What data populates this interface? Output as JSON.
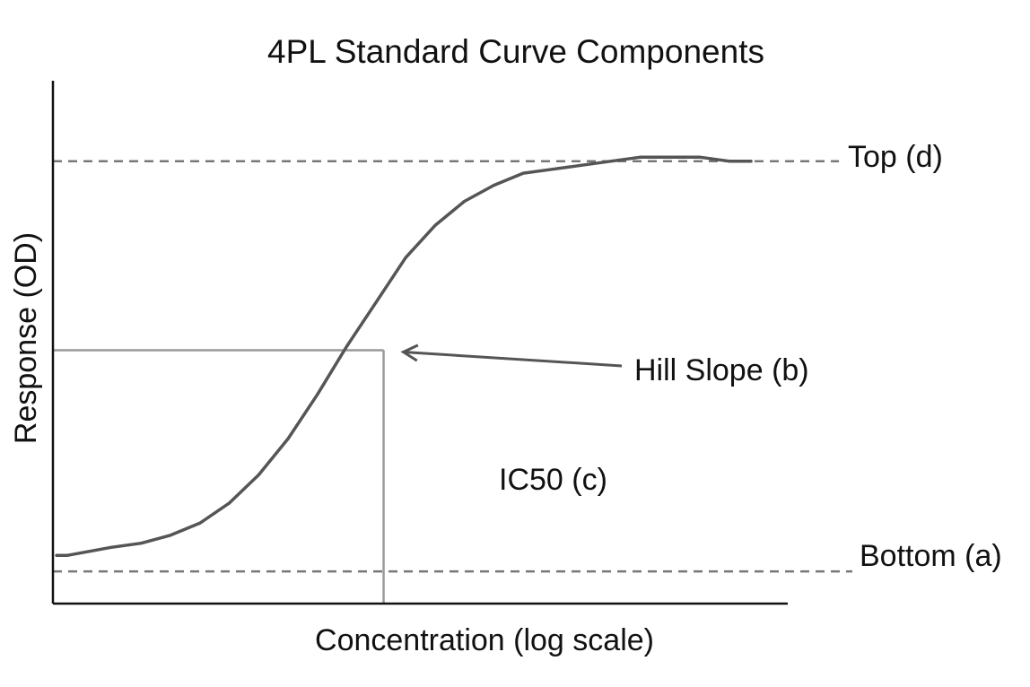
{
  "chart_data": {
    "type": "line",
    "title": "4PL Standard Curve Components",
    "xlabel": "Concentration (log scale)",
    "ylabel": "Response (OD)",
    "x_scale": "log",
    "grid": false,
    "series": [
      {
        "x": [
          0.5,
          2,
          5,
          8,
          12,
          16,
          20,
          24,
          28,
          32,
          36,
          40,
          44,
          48,
          52,
          56,
          60,
          64,
          68,
          72,
          76,
          80,
          84,
          88,
          92,
          95
        ],
        "values": [
          0.02,
          0.02,
          0.03,
          0.04,
          0.05,
          0.07,
          0.1,
          0.15,
          0.22,
          0.31,
          0.42,
          0.54,
          0.65,
          0.76,
          0.84,
          0.9,
          0.94,
          0.97,
          0.98,
          0.99,
          1.0,
          1.01,
          1.01,
          1.01,
          1.0,
          1.0
        ]
      }
    ],
    "xlim": [
      0,
      100
    ],
    "ylim": [
      -0.1,
      1.2
    ],
    "annotations": {
      "top": {
        "label": "Top (d)",
        "y": 1.0
      },
      "bottom": {
        "label": "Bottom (a)",
        "y": -0.02
      },
      "ic50": {
        "label": "IC50 (c)",
        "x": 45,
        "y": 0.53
      },
      "hill_slope": {
        "label": "Hill Slope (b)"
      }
    },
    "colors": {
      "curve": "#555555",
      "dashed": "#777777",
      "guide": "#999999",
      "axis": "#111111"
    }
  }
}
